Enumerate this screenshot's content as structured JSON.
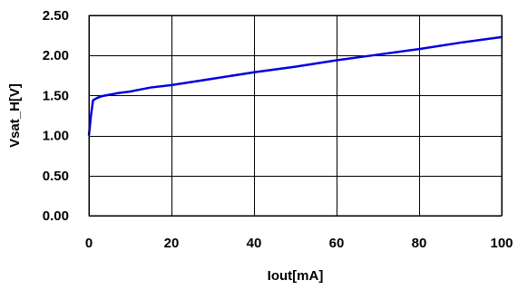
{
  "chart_data": {
    "type": "line",
    "title": "",
    "xlabel": "Iout[mA]",
    "ylabel": "Vsat_H[V]",
    "xlim": [
      0,
      100
    ],
    "ylim": [
      0,
      2.5
    ],
    "x_ticks": [
      0,
      20,
      40,
      60,
      80,
      100
    ],
    "y_ticks": [
      0,
      0.5,
      1.0,
      1.5,
      2.0,
      2.5
    ],
    "x_tick_labels": [
      "0",
      "20",
      "40",
      "60",
      "80",
      "100"
    ],
    "y_tick_labels": [
      "0.00",
      "0.50",
      "1.00",
      "1.50",
      "2.00",
      "2.50"
    ],
    "grid": true,
    "legend": "none",
    "series": [
      {
        "color": "#0000e0",
        "x": [
          0,
          0.5,
          1,
          2,
          3,
          5,
          7,
          10,
          12,
          15,
          20,
          30,
          40,
          50,
          60,
          70,
          80,
          90,
          100
        ],
        "y": [
          1.0,
          1.25,
          1.44,
          1.47,
          1.49,
          1.51,
          1.53,
          1.55,
          1.57,
          1.6,
          1.63,
          1.71,
          1.79,
          1.86,
          1.94,
          2.01,
          2.08,
          2.16,
          2.23
        ]
      }
    ]
  }
}
